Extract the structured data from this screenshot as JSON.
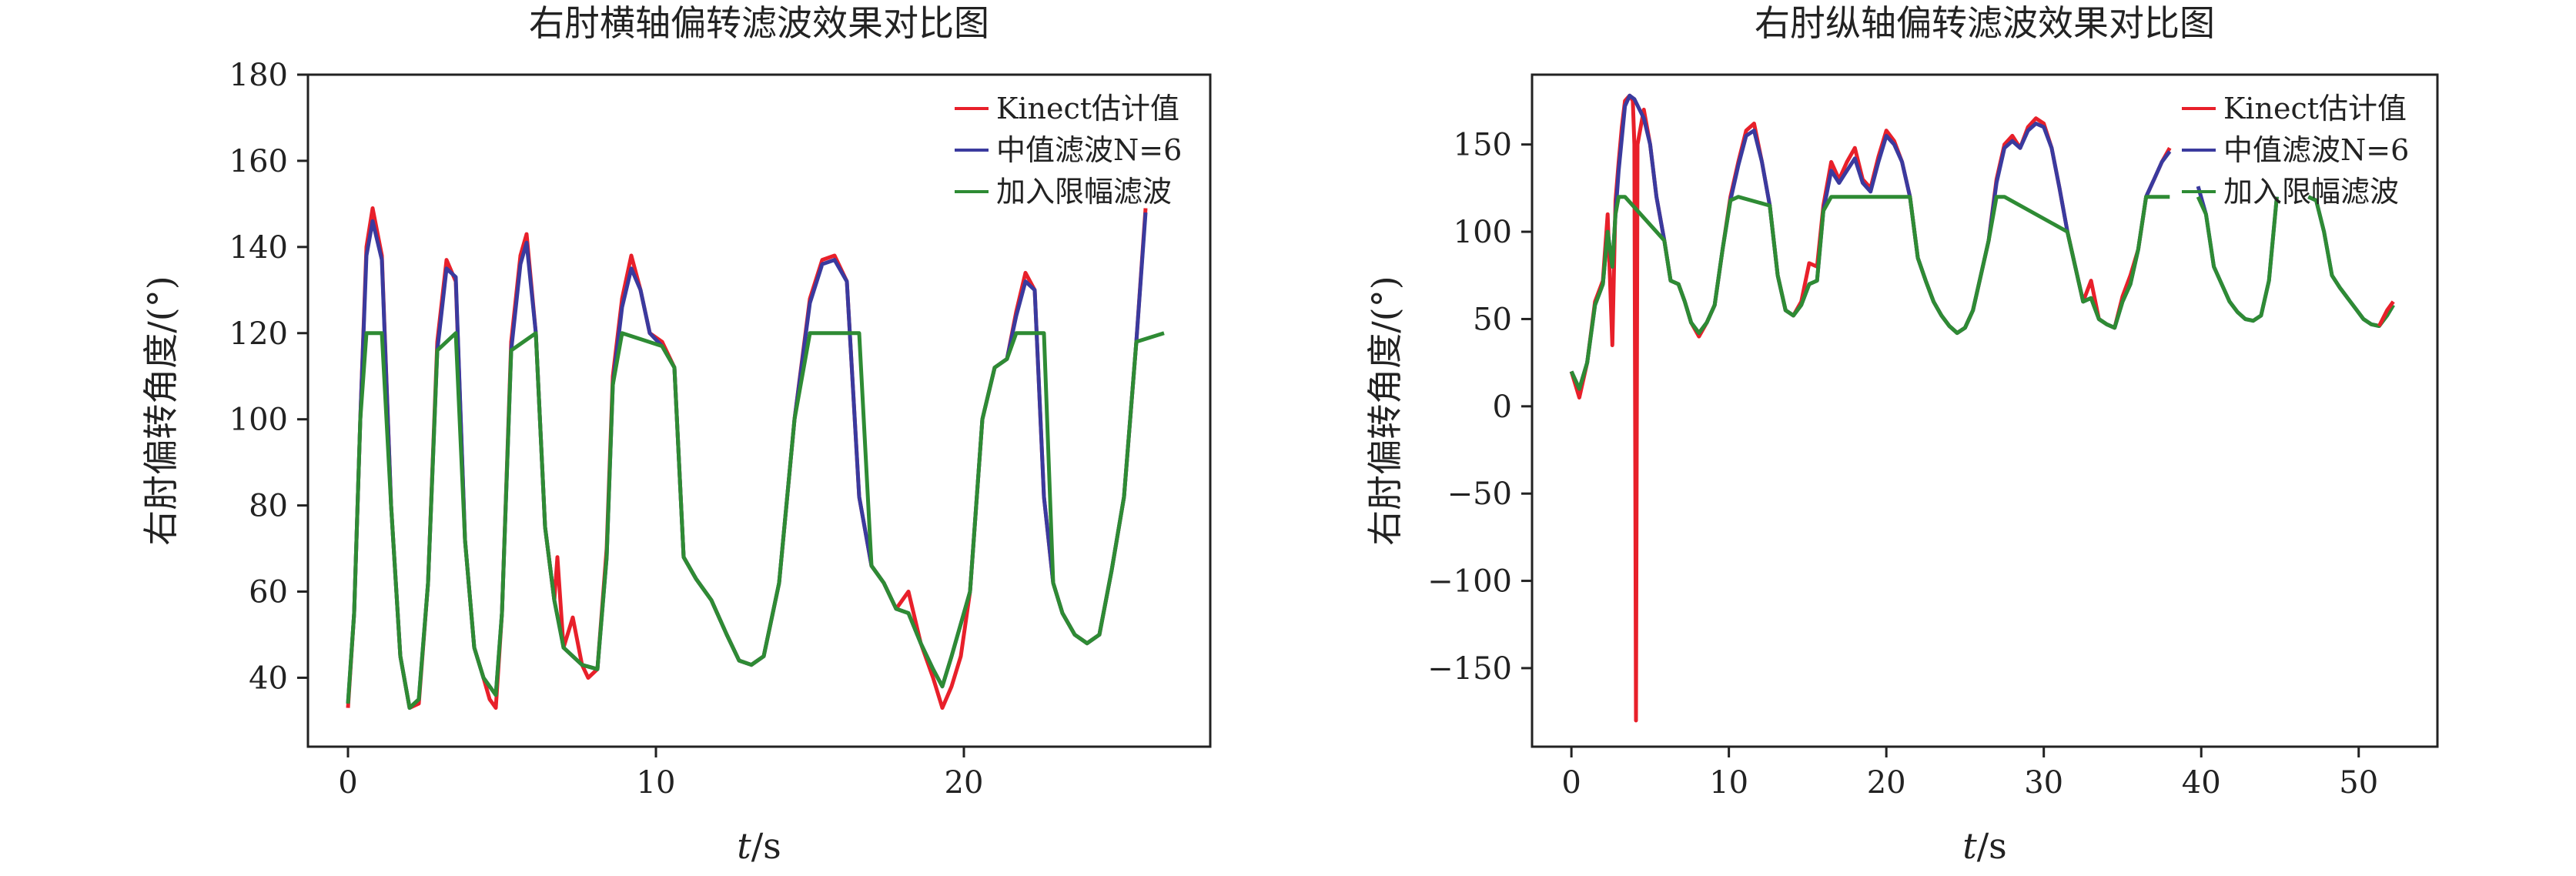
{
  "chart_data": [
    {
      "type": "line",
      "title": "右肘横轴偏转滤波效果对比图",
      "xlabel_var": "t",
      "xlabel_unit": "/s",
      "ylabel": "右肘偏转角度/(°)",
      "xlim": [
        -1.3,
        28
      ],
      "ylim": [
        24,
        180
      ],
      "xticks": [
        0,
        10,
        20
      ],
      "yticks": [
        40,
        60,
        80,
        100,
        120,
        140,
        160,
        180
      ],
      "legend_position": "top-right",
      "legend": [
        "Kinect估计值",
        "中值滤波N=6",
        "加入限幅滤波"
      ],
      "series": [
        {
          "name": "Kinect估计值",
          "color": "#e8202a",
          "x": [
            0,
            0.2,
            0.4,
            0.6,
            0.8,
            1.1,
            1.4,
            1.7,
            2.0,
            2.3,
            2.6,
            2.9,
            3.2,
            3.5,
            3.8,
            4.1,
            4.4,
            4.6,
            4.8,
            5.0,
            5.3,
            5.6,
            5.8,
            6.1,
            6.4,
            6.7,
            6.8,
            7.0,
            7.3,
            7.6,
            7.8,
            8.1,
            8.4,
            8.6,
            8.9,
            9.2,
            9.5,
            9.8,
            10.2,
            10.6,
            10.9,
            11.3,
            11.8,
            12.3,
            12.7,
            13.1,
            13.5,
            14.0,
            14.5,
            15.0,
            15.4,
            15.8,
            16.2,
            16.6,
            17.0,
            17.4,
            17.8,
            18.2,
            18.6,
            19.0,
            19.3,
            19.6,
            19.9,
            20.2,
            20.6,
            21.0,
            21.4,
            21.7,
            22.0,
            22.3,
            22.6,
            22.9,
            23.2,
            23.6,
            24.0,
            24.4,
            24.8,
            25.2,
            25.6,
            25.9
          ],
          "y": [
            33,
            55,
            100,
            140,
            149,
            138,
            80,
            45,
            33,
            34,
            62,
            118,
            137,
            132,
            72,
            47,
            40,
            35,
            33,
            55,
            118,
            138,
            143,
            120,
            75,
            58,
            68,
            47,
            54,
            43,
            40,
            42,
            70,
            110,
            128,
            138,
            130,
            120,
            118,
            112,
            68,
            63,
            58,
            50,
            44,
            43,
            45,
            62,
            100,
            128,
            137,
            138,
            132,
            82,
            66,
            62,
            56,
            60,
            48,
            40,
            33,
            38,
            45,
            60,
            100,
            112,
            114,
            125,
            134,
            130,
            82,
            62,
            55,
            50,
            48,
            50,
            65,
            82,
            118,
            149
          ]
        },
        {
          "name": "中值滤波N=6",
          "color": "#3a3a9e",
          "x": [
            0,
            0.2,
            0.4,
            0.6,
            0.8,
            1.1,
            1.4,
            1.7,
            2.0,
            2.3,
            2.6,
            2.9,
            3.2,
            3.5,
            3.8,
            4.1,
            4.4,
            4.8,
            5.0,
            5.3,
            5.6,
            5.8,
            6.1,
            6.4,
            6.7,
            7.0,
            7.3,
            7.6,
            8.1,
            8.4,
            8.6,
            8.9,
            9.2,
            9.5,
            9.8,
            10.2,
            10.6,
            10.9,
            11.3,
            11.8,
            12.3,
            12.7,
            13.1,
            13.5,
            14.0,
            14.5,
            15.0,
            15.4,
            15.8,
            16.2,
            16.6,
            17.0,
            17.4,
            17.8,
            18.2,
            18.6,
            19.0,
            19.3,
            19.6,
            20.2,
            20.6,
            21.0,
            21.4,
            21.7,
            22.0,
            22.3,
            22.6,
            22.9,
            23.2,
            23.6,
            24.0,
            24.4,
            24.8,
            25.2,
            25.6,
            25.9
          ],
          "y": [
            34,
            55,
            100,
            138,
            146,
            137,
            80,
            45,
            33,
            35,
            62,
            116,
            135,
            133,
            72,
            47,
            40,
            36,
            55,
            116,
            136,
            141,
            120,
            75,
            58,
            47,
            45,
            43,
            42,
            68,
            108,
            126,
            135,
            130,
            120,
            117,
            112,
            68,
            63,
            58,
            50,
            44,
            43,
            45,
            62,
            100,
            127,
            136,
            137,
            132,
            82,
            66,
            62,
            56,
            55,
            48,
            42,
            38,
            45,
            60,
            100,
            112,
            114,
            124,
            132,
            130,
            82,
            62,
            55,
            50,
            48,
            50,
            65,
            82,
            118,
            148
          ]
        },
        {
          "name": "加入限幅滤波",
          "color": "#2e8b34",
          "x": [
            0,
            0.2,
            0.4,
            0.6,
            1.1,
            1.4,
            1.7,
            2.0,
            2.3,
            2.6,
            2.9,
            3.5,
            3.8,
            4.1,
            4.4,
            4.8,
            5.0,
            5.3,
            6.1,
            6.4,
            6.7,
            7.0,
            7.3,
            7.6,
            8.1,
            8.4,
            8.6,
            8.9,
            10.2,
            10.6,
            10.9,
            11.3,
            11.8,
            12.3,
            12.7,
            13.1,
            13.5,
            14.0,
            14.5,
            15.0,
            16.6,
            17.0,
            17.4,
            17.8,
            18.2,
            18.6,
            19.0,
            19.3,
            19.6,
            20.2,
            20.6,
            21.0,
            21.4,
            21.7,
            22.6,
            22.9,
            23.2,
            23.6,
            24.0,
            24.4,
            24.8,
            25.2,
            25.6,
            26.5
          ],
          "y": [
            34,
            55,
            100,
            120,
            120,
            80,
            45,
            33,
            35,
            62,
            116,
            120,
            72,
            47,
            40,
            36,
            55,
            116,
            120,
            75,
            58,
            47,
            45,
            43,
            42,
            68,
            108,
            120,
            117,
            112,
            68,
            63,
            58,
            50,
            44,
            43,
            45,
            62,
            100,
            120,
            120,
            66,
            62,
            56,
            55,
            48,
            42,
            38,
            45,
            60,
            100,
            112,
            114,
            120,
            120,
            62,
            55,
            50,
            48,
            50,
            65,
            82,
            118,
            120
          ]
        }
      ]
    },
    {
      "type": "line",
      "title": "右肘纵轴偏转滤波效果对比图",
      "xlabel_var": "t",
      "xlabel_unit": "/s",
      "ylabel": "右肘偏转角度/(°)",
      "xlim": [
        -2.5,
        55
      ],
      "ylim": [
        -195,
        190
      ],
      "xticks": [
        0,
        10,
        20,
        30,
        40,
        50
      ],
      "yticks": [
        -150,
        -100,
        -50,
        0,
        50,
        100,
        150
      ],
      "yticklabels": [
        "−150",
        "−100",
        "−50",
        "0",
        "50",
        "100",
        "150"
      ],
      "legend_position": "top-right",
      "legend": [
        "Kinect估计值",
        "中值滤波N=6",
        "加入限幅滤波"
      ],
      "series": [
        {
          "name": "Kinect估计值",
          "color": "#e8202a",
          "x": [
            0,
            0.5,
            1.0,
            1.5,
            2.0,
            2.3,
            2.6,
            2.8,
            3.0,
            3.2,
            3.4,
            3.7,
            3.9,
            4.0,
            4.1,
            4.2,
            4.6,
            5.0,
            5.4,
            5.9,
            6.3,
            6.8,
            7.2,
            7.6,
            8.1,
            8.6,
            9.1,
            9.6,
            10.1,
            10.6,
            11.1,
            11.6,
            12.1,
            12.6,
            13.1,
            13.6,
            14.1,
            14.6,
            15.1,
            15.6,
            16.0,
            16.5,
            17.0,
            17.5,
            18.0,
            18.5,
            19.0,
            19.5,
            20.0,
            20.5,
            21.0,
            21.5,
            22.0,
            22.5,
            23.0,
            23.5,
            24.0,
            24.5,
            25.0,
            25.5,
            26.0,
            26.5,
            27.0,
            27.5,
            28.0,
            28.5,
            29.0,
            29.5,
            30.0,
            30.5,
            31.0,
            31.5,
            32.0,
            32.5,
            33.0,
            33.5,
            34.0,
            34.5,
            35.0,
            35.5,
            36.0,
            36.5,
            37.0,
            37.5,
            38.0
          ],
          "y": [
            20,
            5,
            25,
            60,
            72,
            110,
            35,
            118,
            140,
            160,
            175,
            178,
            175,
            150,
            -180,
            150,
            170,
            150,
            120,
            95,
            72,
            70,
            60,
            48,
            40,
            48,
            58,
            90,
            120,
            140,
            158,
            162,
            140,
            115,
            75,
            55,
            52,
            60,
            82,
            80,
            115,
            140,
            130,
            140,
            148,
            130,
            125,
            143,
            158,
            152,
            140,
            120,
            85,
            72,
            60,
            52,
            46,
            42,
            45,
            55,
            75,
            95,
            130,
            150,
            155,
            148,
            160,
            165,
            162,
            148,
            125,
            100,
            80,
            60,
            72,
            50,
            47,
            45,
            63,
            75,
            90,
            120,
            130,
            140,
            148
          ]
        },
        {
          "name": "中值滤波N=6",
          "color": "#3a3a9e",
          "x": [
            0,
            0.5,
            1.0,
            1.5,
            2.0,
            2.3,
            2.6,
            2.8,
            3.0,
            3.4,
            3.7,
            4.0,
            4.6,
            5.0,
            5.4,
            5.9,
            6.3,
            6.8,
            7.2,
            7.6,
            8.1,
            8.6,
            9.1,
            9.6,
            10.1,
            10.6,
            11.1,
            11.6,
            12.1,
            12.6,
            13.1,
            13.6,
            14.1,
            14.6,
            15.1,
            15.6,
            16.0,
            16.5,
            17.0,
            17.5,
            18.0,
            18.5,
            19.0,
            19.5,
            20.0,
            20.5,
            21.0,
            21.5,
            22.0,
            22.5,
            23.0,
            23.5,
            24.0,
            24.5,
            25.0,
            25.5,
            26.0,
            26.5,
            27.0,
            27.5,
            28.0,
            28.5,
            29.0,
            29.5,
            30.0,
            30.5,
            31.0,
            31.5,
            32.0,
            32.5,
            33.0,
            33.5,
            34.0,
            34.5,
            35.0,
            35.5,
            36.0,
            36.5,
            37.0,
            37.5,
            38.0
          ],
          "y": [
            20,
            10,
            25,
            58,
            70,
            100,
            80,
            110,
            135,
            172,
            178,
            176,
            165,
            150,
            120,
            95,
            72,
            70,
            60,
            48,
            42,
            48,
            58,
            90,
            118,
            138,
            155,
            158,
            140,
            115,
            75,
            55,
            52,
            58,
            70,
            72,
            112,
            135,
            128,
            135,
            142,
            128,
            123,
            140,
            155,
            150,
            140,
            120,
            85,
            72,
            60,
            52,
            46,
            42,
            45,
            55,
            75,
            95,
            128,
            148,
            152,
            148,
            158,
            162,
            160,
            148,
            125,
            100,
            80,
            60,
            62,
            50,
            47,
            45,
            60,
            70,
            90,
            120,
            130,
            140,
            146
          ]
        },
        {
          "name": "加入限幅滤波",
          "color": "#2e8b34",
          "x": [
            0,
            0.5,
            1.0,
            1.5,
            2.0,
            2.3,
            2.6,
            2.8,
            3.0,
            3.4,
            5.9,
            6.3,
            6.8,
            7.2,
            7.6,
            8.1,
            8.6,
            9.1,
            9.6,
            10.1,
            10.6,
            12.6,
            13.1,
            13.6,
            14.1,
            14.6,
            15.1,
            15.6,
            16.0,
            16.5,
            21.5,
            22.0,
            22.5,
            23.0,
            23.5,
            24.0,
            24.5,
            25.0,
            25.5,
            26.0,
            26.5,
            27.0,
            27.5,
            31.5,
            32.0,
            32.5,
            33.0,
            33.5,
            34.0,
            34.5,
            35.0,
            35.5,
            36.0,
            36.5,
            37.0,
            38.0
          ],
          "y": [
            20,
            10,
            25,
            58,
            70,
            100,
            80,
            110,
            120,
            120,
            95,
            72,
            70,
            60,
            48,
            42,
            48,
            58,
            90,
            118,
            120,
            115,
            75,
            55,
            52,
            58,
            70,
            72,
            112,
            120,
            120,
            85,
            72,
            60,
            52,
            46,
            42,
            45,
            55,
            75,
            95,
            120,
            120,
            100,
            80,
            60,
            62,
            50,
            47,
            45,
            60,
            70,
            90,
            120,
            120,
            120
          ]
        },
        {
          "name": "中值滤波N=6",
          "color": "#3a3a9e",
          "x": [
            39.8,
            40.3,
            40.8,
            41.3,
            41.8,
            42.3,
            42.8,
            43.3,
            43.8,
            44.3,
            44.8
          ],
          "y": [
            126,
            110,
            80,
            70,
            60,
            54,
            50,
            49,
            52,
            72,
            120
          ]
        },
        {
          "name": "加入限幅滤波",
          "color": "#2e8b34",
          "x": [
            39.8,
            40.3,
            40.8,
            41.3,
            41.8,
            42.3,
            42.8,
            43.3,
            43.8,
            44.3,
            44.8
          ],
          "y": [
            120,
            110,
            80,
            70,
            60,
            54,
            50,
            49,
            52,
            72,
            120
          ]
        },
        {
          "name": "中值滤波N=6",
          "color": "#3a3a9e",
          "x": [
            46.8,
            47.3,
            47.8,
            48.3,
            48.8,
            49.3,
            49.8,
            50.3,
            50.8,
            51.3,
            51.8,
            52.2
          ],
          "y": [
            120,
            118,
            100,
            75,
            68,
            62,
            56,
            50,
            47,
            46,
            52,
            58
          ]
        },
        {
          "name": "加入限幅滤波",
          "color": "#2e8b34",
          "x": [
            46.8,
            47.3,
            47.8,
            48.3,
            48.8,
            49.3,
            49.8,
            50.3,
            50.8,
            51.3,
            51.8,
            52.2
          ],
          "y": [
            120,
            118,
            100,
            75,
            68,
            62,
            56,
            50,
            47,
            46,
            52,
            58
          ]
        },
        {
          "name": "Kinect估计值",
          "color": "#e8202a",
          "x": [
            51.3,
            51.8,
            52.2
          ],
          "y": [
            46,
            55,
            60
          ]
        }
      ]
    }
  ]
}
